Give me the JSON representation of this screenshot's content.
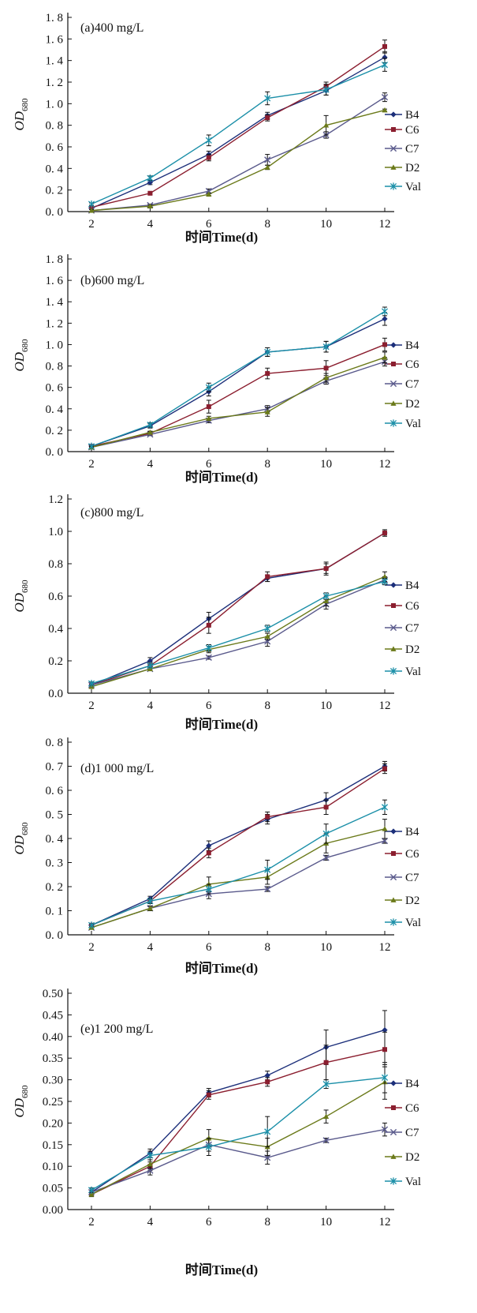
{
  "colors": {
    "B4": "#1c2f7a",
    "C6": "#8b1e2f",
    "C7": "#5a5a8c",
    "D2": "#6b7a1a",
    "Val": "#1b8fa8"
  },
  "chart_data": [
    {
      "type": "line",
      "title": "(a)400 mg/L",
      "xlabel": "时间Time(d)",
      "ylabel": "OD",
      "ylabel_sub": "680",
      "x": [
        2,
        4,
        6,
        8,
        10,
        12
      ],
      "xlim": [
        2,
        12
      ],
      "ylim": [
        0,
        1.8
      ],
      "yticks": [
        0.0,
        0.2,
        0.4,
        0.6,
        0.8,
        1.0,
        1.2,
        1.4,
        1.6,
        1.8
      ],
      "ytick_labels": [
        "0. 0",
        "0. 2",
        "0. 4",
        "0. 6",
        "0. 8",
        "1. 0",
        "1. 2",
        "1. 4",
        "1. 6",
        "1. 8"
      ],
      "xtick_labels": [
        "2",
        "4",
        "6",
        "8",
        "10",
        "12"
      ],
      "legend_placement": "right",
      "series": [
        {
          "name": "B4",
          "values": [
            0.03,
            0.27,
            0.53,
            0.89,
            1.12,
            1.43
          ],
          "errors": [
            0.01,
            0.02,
            0.03,
            0.03,
            0.04,
            0.05
          ]
        },
        {
          "name": "C6",
          "values": [
            0.04,
            0.17,
            0.5,
            0.87,
            1.16,
            1.53
          ],
          "errors": [
            0.01,
            0.01,
            0.03,
            0.03,
            0.04,
            0.06
          ]
        },
        {
          "name": "C7",
          "values": [
            0.01,
            0.06,
            0.19,
            0.48,
            0.71,
            1.06
          ],
          "errors": [
            0.01,
            0.01,
            0.02,
            0.05,
            0.03,
            0.04
          ]
        },
        {
          "name": "D2",
          "values": [
            0.01,
            0.05,
            0.16,
            0.41,
            0.8,
            0.94
          ],
          "errors": [
            0.01,
            0.01,
            0.01,
            0.02,
            0.09,
            0.01
          ]
        },
        {
          "name": "Val",
          "values": [
            0.07,
            0.31,
            0.66,
            1.05,
            1.13,
            1.36
          ],
          "errors": [
            0.01,
            0.02,
            0.05,
            0.06,
            0.05,
            0.06
          ]
        }
      ]
    },
    {
      "type": "line",
      "title": "(b)600 mg/L",
      "xlabel": "时间Time(d)",
      "ylabel": "OD",
      "ylabel_sub": "680",
      "x": [
        2,
        4,
        6,
        8,
        10,
        12
      ],
      "xlim": [
        2,
        12
      ],
      "ylim": [
        0,
        1.8
      ],
      "yticks": [
        0.0,
        0.2,
        0.4,
        0.6,
        0.8,
        1.0,
        1.2,
        1.4,
        1.6,
        1.8
      ],
      "ytick_labels": [
        "0. 0",
        "0. 2",
        "0. 4",
        "0. 6",
        "0. 8",
        "1. 0",
        "1. 2",
        "1. 4",
        "1. 6",
        "1. 8"
      ],
      "xtick_labels": [
        "2",
        "4",
        "6",
        "8",
        "10",
        "12"
      ],
      "legend_placement": "right",
      "series": [
        {
          "name": "B4",
          "values": [
            0.05,
            0.24,
            0.56,
            0.93,
            0.98,
            1.24
          ],
          "errors": [
            0.01,
            0.02,
            0.04,
            0.04,
            0.05,
            0.06
          ]
        },
        {
          "name": "C6",
          "values": [
            0.05,
            0.17,
            0.42,
            0.73,
            0.78,
            1.0
          ],
          "errors": [
            0.01,
            0.02,
            0.06,
            0.05,
            0.07,
            0.06
          ]
        },
        {
          "name": "C7",
          "values": [
            0.04,
            0.16,
            0.29,
            0.4,
            0.66,
            0.84
          ],
          "errors": [
            0.01,
            0.01,
            0.02,
            0.03,
            0.03,
            0.04
          ]
        },
        {
          "name": "D2",
          "values": [
            0.04,
            0.18,
            0.31,
            0.37,
            0.69,
            0.88
          ],
          "errors": [
            0.01,
            0.01,
            0.02,
            0.04,
            0.04,
            0.05
          ]
        },
        {
          "name": "Val",
          "values": [
            0.05,
            0.25,
            0.6,
            0.93,
            0.98,
            1.31
          ],
          "errors": [
            0.01,
            0.02,
            0.04,
            0.04,
            0.05,
            0.04
          ]
        }
      ]
    },
    {
      "type": "line",
      "title": "(c)800 mg/L",
      "xlabel": "时间Time(d)",
      "ylabel": "OD",
      "ylabel_sub": "680",
      "x": [
        2,
        4,
        6,
        8,
        10,
        12
      ],
      "xlim": [
        2,
        12
      ],
      "ylim": [
        0,
        1.2
      ],
      "yticks": [
        0.0,
        0.2,
        0.4,
        0.6,
        0.8,
        1.0,
        1.2
      ],
      "ytick_labels": [
        "0.0",
        "0.2",
        "0.4",
        "0.6",
        "0.8",
        "1.0",
        "1.2"
      ],
      "xtick_labels": [
        "2",
        "4",
        "6",
        "8",
        "10",
        "12"
      ],
      "legend_placement": "right",
      "series": [
        {
          "name": "B4",
          "values": [
            0.05,
            0.2,
            0.46,
            0.71,
            0.77,
            0.99
          ],
          "errors": [
            0.01,
            0.02,
            0.04,
            0.02,
            0.03,
            0.02
          ]
        },
        {
          "name": "C6",
          "values": [
            0.05,
            0.17,
            0.42,
            0.72,
            0.77,
            0.99
          ],
          "errors": [
            0.01,
            0.02,
            0.05,
            0.03,
            0.04,
            0.02
          ]
        },
        {
          "name": "C7",
          "values": [
            0.05,
            0.15,
            0.22,
            0.32,
            0.55,
            0.7
          ],
          "errors": [
            0.01,
            0.01,
            0.01,
            0.03,
            0.03,
            0.02
          ]
        },
        {
          "name": "D2",
          "values": [
            0.04,
            0.15,
            0.27,
            0.35,
            0.57,
            0.72
          ],
          "errors": [
            0.01,
            0.01,
            0.02,
            0.02,
            0.03,
            0.03
          ]
        },
        {
          "name": "Val",
          "values": [
            0.06,
            0.17,
            0.28,
            0.4,
            0.6,
            0.69
          ],
          "errors": [
            0.01,
            0.01,
            0.02,
            0.02,
            0.02,
            0.02
          ]
        }
      ]
    },
    {
      "type": "line",
      "title": "(d)1 000 mg/L",
      "xlabel": "时间Time(d)",
      "ylabel": "OD",
      "ylabel_sub": "680",
      "x": [
        2,
        4,
        6,
        8,
        10,
        12
      ],
      "xlim": [
        2,
        12
      ],
      "ylim": [
        0,
        0.8
      ],
      "yticks": [
        0.0,
        0.1,
        0.2,
        0.3,
        0.4,
        0.5,
        0.6,
        0.7,
        0.8
      ],
      "ytick_labels": [
        "0. 0",
        "0. 1",
        "0. 2",
        "0. 3",
        "0. 4",
        "0. 5",
        "0. 6",
        "0. 7",
        "0. 8"
      ],
      "xtick_labels": [
        "2",
        "4",
        "6",
        "8",
        "10",
        "12"
      ],
      "legend_placement": "right",
      "series": [
        {
          "name": "B4",
          "values": [
            0.04,
            0.15,
            0.37,
            0.48,
            0.56,
            0.7
          ],
          "errors": [
            0.005,
            0.01,
            0.02,
            0.02,
            0.03,
            0.02
          ]
        },
        {
          "name": "C6",
          "values": [
            0.04,
            0.14,
            0.34,
            0.49,
            0.53,
            0.69
          ],
          "errors": [
            0.005,
            0.01,
            0.02,
            0.02,
            0.03,
            0.02
          ]
        },
        {
          "name": "C7",
          "values": [
            0.03,
            0.11,
            0.17,
            0.19,
            0.32,
            0.39
          ],
          "errors": [
            0.005,
            0.01,
            0.02,
            0.01,
            0.01,
            0.01
          ]
        },
        {
          "name": "D2",
          "values": [
            0.03,
            0.11,
            0.21,
            0.24,
            0.38,
            0.44
          ],
          "errors": [
            0.005,
            0.01,
            0.03,
            0.03,
            0.04,
            0.04
          ]
        },
        {
          "name": "Val",
          "values": [
            0.04,
            0.14,
            0.19,
            0.27,
            0.42,
            0.53
          ],
          "errors": [
            0.005,
            0.01,
            0.02,
            0.04,
            0.04,
            0.03
          ]
        }
      ]
    },
    {
      "type": "line",
      "title": "(e)1 200 mg/L",
      "xlabel": "时间Time(d)",
      "ylabel": "OD",
      "ylabel_sub": "680",
      "x": [
        2,
        4,
        6,
        8,
        10,
        12
      ],
      "xlim": [
        2,
        12
      ],
      "ylim": [
        0,
        0.5
      ],
      "yticks": [
        0.0,
        0.05,
        0.1,
        0.15,
        0.2,
        0.25,
        0.3,
        0.35,
        0.4,
        0.45,
        0.5
      ],
      "ytick_labels": [
        "0.00",
        "0.05",
        "0.10",
        "0.15",
        "0.20",
        "0.25",
        "0.30",
        "0.35",
        "0.40",
        "0.45",
        "0.50"
      ],
      "xtick_labels": [
        "2",
        "4",
        "6",
        "8",
        "10",
        "12"
      ],
      "legend_placement": "right",
      "series": [
        {
          "name": "B4",
          "values": [
            0.04,
            0.13,
            0.27,
            0.31,
            0.375,
            0.415
          ],
          "errors": [
            0.005,
            0.01,
            0.01,
            0.01,
            0.04,
            0.045
          ]
        },
        {
          "name": "C6",
          "values": [
            0.035,
            0.1,
            0.265,
            0.295,
            0.34,
            0.37
          ],
          "errors": [
            0.005,
            0.01,
            0.01,
            0.01,
            0.04,
            0.04
          ]
        },
        {
          "name": "C7",
          "values": [
            0.04,
            0.09,
            0.15,
            0.12,
            0.16,
            0.185
          ],
          "errors": [
            0.005,
            0.01,
            0.015,
            0.015,
            0.005,
            0.015
          ]
        },
        {
          "name": "D2",
          "values": [
            0.035,
            0.105,
            0.165,
            0.145,
            0.215,
            0.295
          ],
          "errors": [
            0.005,
            0.01,
            0.02,
            0.02,
            0.015,
            0.04
          ]
        },
        {
          "name": "Val",
          "values": [
            0.045,
            0.125,
            0.145,
            0.18,
            0.29,
            0.305
          ],
          "errors": [
            0.005,
            0.01,
            0.02,
            0.035,
            0.01,
            0.035
          ]
        }
      ]
    }
  ]
}
